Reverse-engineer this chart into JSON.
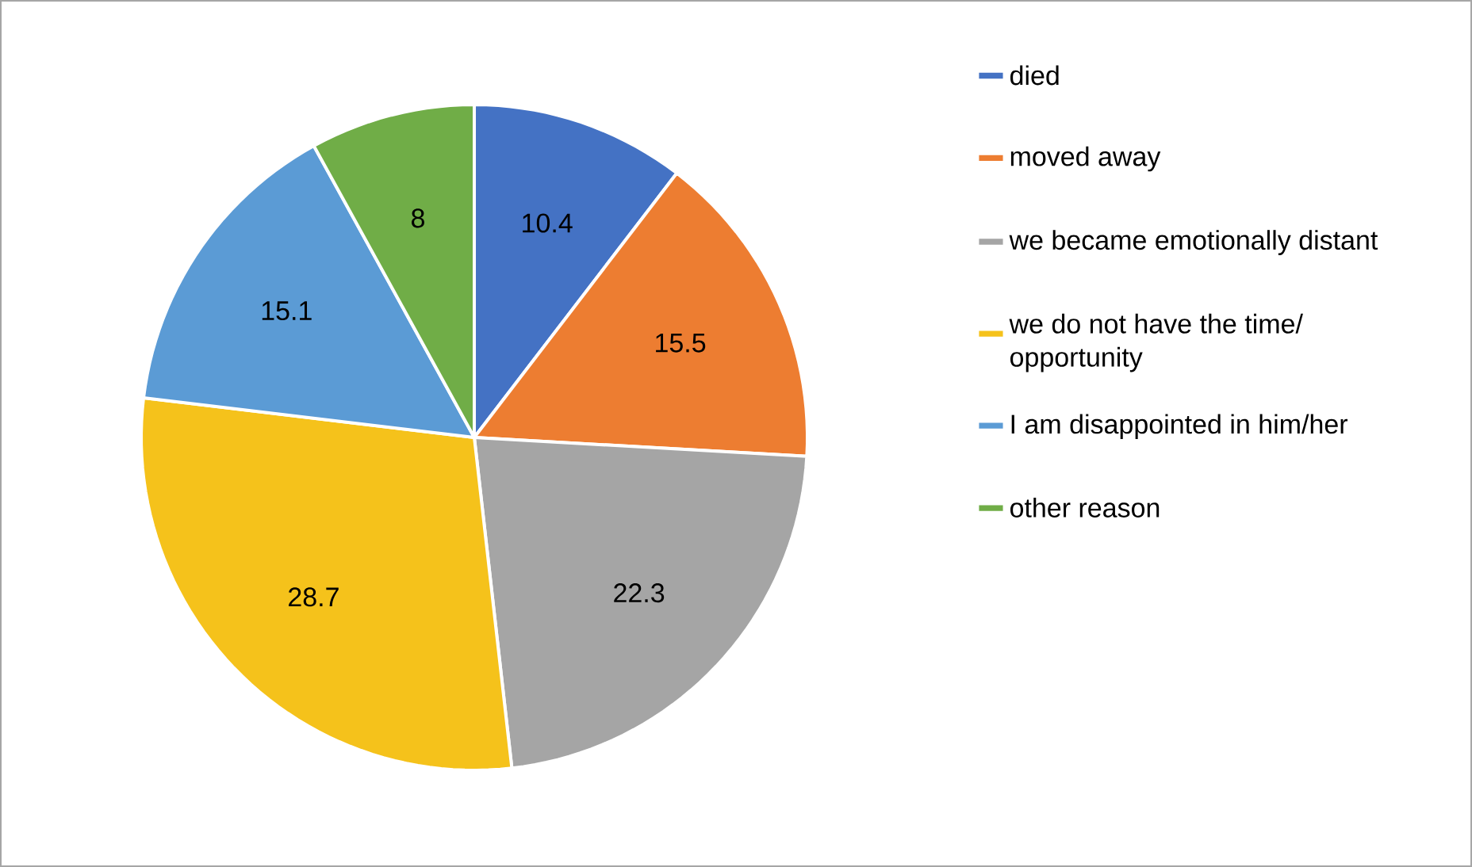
{
  "chart_data": {
    "type": "pie",
    "categories": [
      "died",
      "moved away",
      "we became emotionally distant",
      "we do not have the time/ opportunity",
      "I am disappointed in him/her",
      "other reason"
    ],
    "values": [
      10.4,
      15.5,
      22.3,
      28.7,
      15.1,
      8
    ],
    "colors": [
      "#4472c4",
      "#ed7d31",
      "#a5a5a5",
      "#f5c21b",
      "#5b9bd5",
      "#70ad47"
    ],
    "data_labels": true,
    "legend": "right"
  }
}
